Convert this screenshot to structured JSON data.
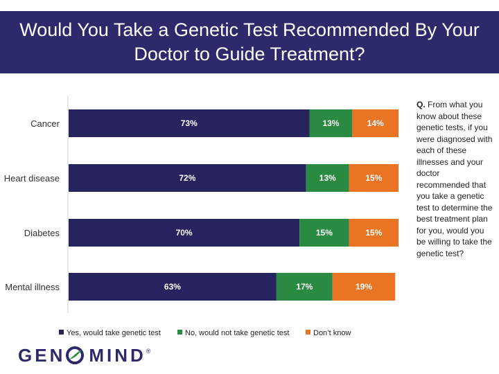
{
  "title": {
    "line1": "Would You Take a Genetic Test Recommended By Your",
    "line2": "Doctor to Guide Treatment?"
  },
  "question": {
    "prefix": "Q.",
    "text": " From what you know about these genetic tests, if you were diagnosed with each of these illnesses and your doctor recommended that you take a genetic test to determine the best treatment plan for you, would you be willing to take the genetic test?"
  },
  "logo": {
    "left_text": "GEN",
    "right_text": "MIND",
    "mark": "®"
  },
  "colors": {
    "yes": "#27235e",
    "no": "#2a8a41",
    "dont_know": "#e87424",
    "banner": "#2c2a6b"
  },
  "chart_data": {
    "type": "bar",
    "orientation": "horizontal",
    "stacked": true,
    "percent_stacked": true,
    "categories": [
      "Cancer",
      "Heart disease",
      "Diabetes",
      "Mental illness"
    ],
    "series": [
      {
        "name": "Yes, would take genetic test",
        "values": [
          73,
          72,
          70,
          63
        ],
        "labels": [
          "73%",
          "72%",
          "70%",
          "63%"
        ],
        "color": "#27235e"
      },
      {
        "name": "No, would not take genetic test",
        "values": [
          13,
          13,
          15,
          17
        ],
        "labels": [
          "13%",
          "13%",
          "15%",
          "17%"
        ],
        "color": "#2a8a41"
      },
      {
        "name": "Don’t know",
        "values": [
          14,
          15,
          15,
          19
        ],
        "labels": [
          "14%",
          "15%",
          "15%",
          "19%"
        ],
        "color": "#e87424"
      }
    ],
    "xlim": [
      0,
      100
    ],
    "grid": false,
    "legend_position": "bottom"
  }
}
